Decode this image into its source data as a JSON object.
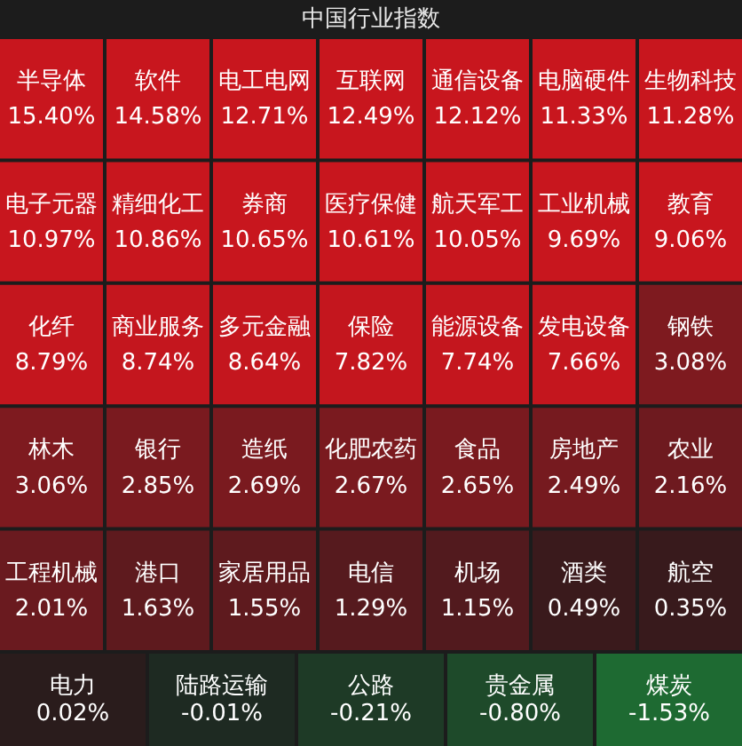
{
  "chart_data": {
    "type": "other",
    "title": "中国行业指数",
    "categories": [
      "半导体",
      "软件",
      "电工电网",
      "互联网",
      "通信设备",
      "电脑硬件",
      "生物科技",
      "电子元器",
      "精细化工",
      "券商",
      "医疗保健",
      "航天军工",
      "工业机械",
      "教育",
      "化纤",
      "商业服务",
      "多元金融",
      "保险",
      "能源设备",
      "发电设备",
      "钢铁",
      "林木",
      "银行",
      "造纸",
      "化肥农药",
      "食品",
      "房地产",
      "农业",
      "工程机械",
      "港口",
      "家居用品",
      "电信",
      "机场",
      "酒类",
      "航空",
      "电力",
      "陆路运输",
      "公路",
      "贵金属",
      "煤炭"
    ],
    "values": [
      15.4,
      14.58,
      12.71,
      12.49,
      12.12,
      11.33,
      11.28,
      10.97,
      10.86,
      10.65,
      10.61,
      10.05,
      9.69,
      9.06,
      8.79,
      8.74,
      8.64,
      7.82,
      7.74,
      7.66,
      3.08,
      3.06,
      2.85,
      2.69,
      2.67,
      2.65,
      2.49,
      2.16,
      2.01,
      1.63,
      1.55,
      1.29,
      1.15,
      0.49,
      0.35,
      0.02,
      -0.01,
      -0.21,
      -0.8,
      -1.53
    ],
    "value_labels": [
      "15.40%",
      "14.58%",
      "12.71%",
      "12.49%",
      "12.12%",
      "11.33%",
      "11.28%",
      "10.97%",
      "10.86%",
      "10.65%",
      "10.61%",
      "10.05%",
      "9.69%",
      "9.06%",
      "8.79%",
      "8.74%",
      "8.64%",
      "7.82%",
      "7.74%",
      "7.66%",
      "3.08%",
      "3.06%",
      "2.85%",
      "2.69%",
      "2.67%",
      "2.65%",
      "2.49%",
      "2.16%",
      "2.01%",
      "1.63%",
      "1.55%",
      "1.29%",
      "1.15%",
      "0.49%",
      "0.35%",
      "0.02%",
      "-0.01%",
      "-0.21%",
      "-0.80%",
      "-1.53%"
    ],
    "colors": [
      "#c8161e",
      "#c8161e",
      "#c8161e",
      "#c8161e",
      "#c8161e",
      "#c8161e",
      "#c8161e",
      "#c8161e",
      "#c8161e",
      "#c8161e",
      "#c8161e",
      "#c8161e",
      "#c8161e",
      "#c8161e",
      "#c4161e",
      "#c4161e",
      "#c4161e",
      "#c4161e",
      "#c4161e",
      "#c4161e",
      "#7e1a1f",
      "#7e1a1f",
      "#7a1a1f",
      "#7a1a1f",
      "#7a1a1f",
      "#7a1a1f",
      "#761a1f",
      "#6e1a1f",
      "#6a1a1f",
      "#5e1a1e",
      "#5e1a1e",
      "#561a1e",
      "#521a1e",
      "#3a1a1c",
      "#381a1c",
      "#2a1c1c",
      "#1e2a22",
      "#1e3a26",
      "#1e4a2a",
      "#1e6a32"
    ]
  }
}
